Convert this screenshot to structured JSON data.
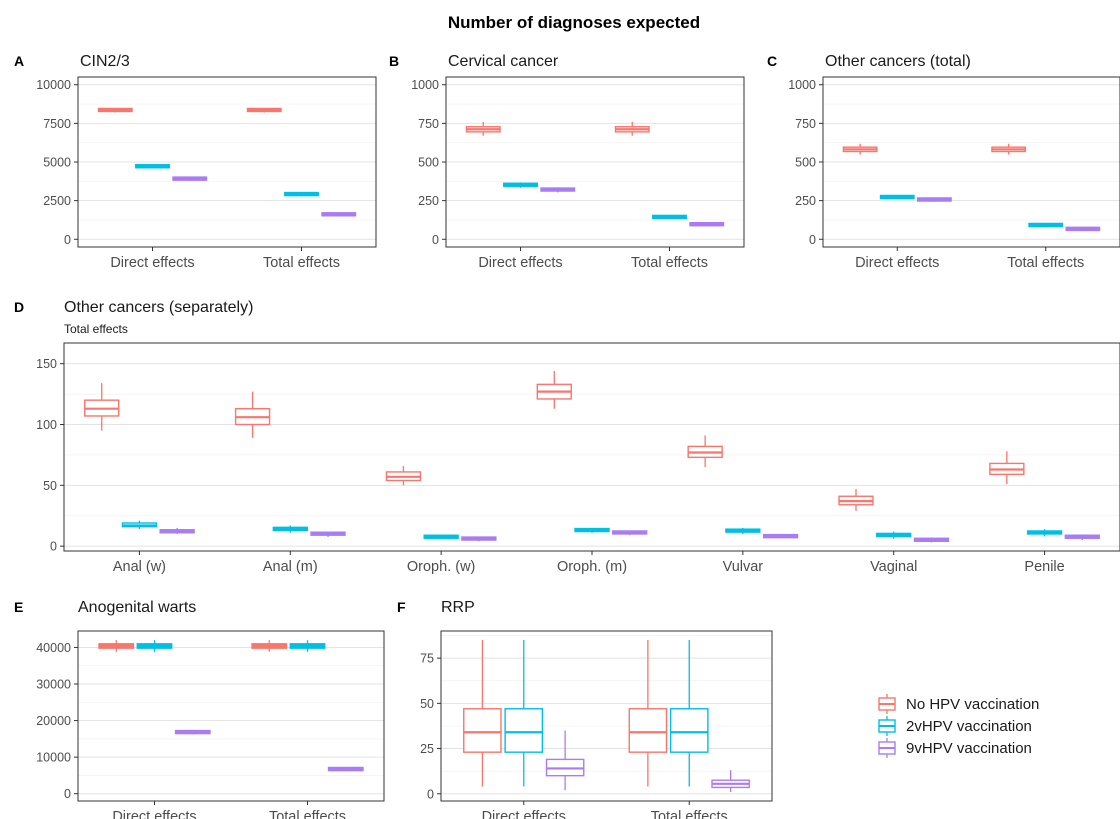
{
  "title": "Number of diagnoses expected",
  "legend": {
    "position": "right",
    "entries": [
      {
        "name": "No HPV vaccination",
        "color": "#F8766D"
      },
      {
        "name": "2vHPV vaccination",
        "color": "#00BFE4"
      },
      {
        "name": "9vHPV vaccination",
        "color": "#A97CF4"
      }
    ]
  },
  "chart_data": [
    {
      "panel": "A",
      "type": "boxplot",
      "title": "CIN2/3",
      "subtitle": "",
      "categories": [
        "Direct effects",
        "Total effects"
      ],
      "ylim": [
        -500,
        10500
      ],
      "yticks": [
        "0",
        "2500",
        "5000",
        "7500",
        "10000"
      ],
      "ytick_values": [
        0,
        2500,
        5000,
        7500,
        10000
      ],
      "grid": true,
      "series": [
        {
          "name": "No HPV vaccination",
          "boxes": [
            [
              8200,
              8270,
              8320,
              8370,
              8450
            ],
            [
              8200,
              8270,
              8320,
              8370,
              8450
            ]
          ]
        },
        {
          "name": "2vHPV vaccination",
          "boxes": [
            [
              4580,
              4630,
              4660,
              4690,
              4740
            ],
            [
              2780,
              2830,
              2860,
              2890,
              2940
            ]
          ]
        },
        {
          "name": "9vHPV vaccination",
          "boxes": [
            [
              3780,
              3830,
              3860,
              3890,
              3940
            ],
            [
              1470,
              1520,
              1550,
              1580,
              1630
            ]
          ]
        }
      ]
    },
    {
      "panel": "B",
      "type": "boxplot",
      "title": "Cervical cancer",
      "subtitle": "",
      "categories": [
        "Direct effects",
        "Total effects"
      ],
      "ylim": [
        -50,
        1050
      ],
      "yticks": [
        "0",
        "250",
        "500",
        "750",
        "1000"
      ],
      "ytick_values": [
        0,
        250,
        500,
        750,
        1000
      ],
      "grid": true,
      "series": [
        {
          "name": "No HPV vaccination",
          "boxes": [
            [
              670,
              695,
              712,
              728,
              760
            ],
            [
              670,
              695,
              712,
              728,
              760
            ]
          ]
        },
        {
          "name": "2vHPV vaccination",
          "boxes": [
            [
              333,
              343,
              350,
              357,
              368
            ],
            [
              130,
              135,
              138,
              141,
              146
            ]
          ]
        },
        {
          "name": "9vHPV vaccination",
          "boxes": [
            [
              303,
              312,
              318,
              325,
              335
            ],
            [
              84,
              88,
              91,
              94,
              98
            ]
          ]
        }
      ]
    },
    {
      "panel": "C",
      "type": "boxplot",
      "title": "Other cancers (total)",
      "subtitle": "",
      "categories": [
        "Direct effects",
        "Total effects"
      ],
      "ylim": [
        -50,
        1050
      ],
      "yticks": [
        "0",
        "250",
        "500",
        "750",
        "1000"
      ],
      "ytick_values": [
        0,
        250,
        500,
        750,
        1000
      ],
      "grid": true,
      "series": [
        {
          "name": "No HPV vaccination",
          "boxes": [
            [
              548,
              568,
              582,
              596,
              618
            ],
            [
              548,
              568,
              582,
              596,
              618
            ]
          ]
        },
        {
          "name": "2vHPV vaccination",
          "boxes": [
            [
              259,
              264,
              267,
              270,
              275
            ],
            [
              80,
              83,
              85,
              87,
              90
            ]
          ]
        },
        {
          "name": "9vHPV vaccination",
          "boxes": [
            [
              243,
              248,
              251,
              254,
              259
            ],
            [
              55,
              58,
              60,
              62,
              65
            ]
          ]
        }
      ]
    },
    {
      "panel": "D",
      "type": "boxplot",
      "title": "Other cancers (separately)",
      "subtitle": "Total effects",
      "categories": [
        "Anal (w)",
        "Anal (m)",
        "Oroph. (w)",
        "Oroph. (m)",
        "Vulvar",
        "Vaginal",
        "Penile"
      ],
      "ylim": [
        -4,
        167
      ],
      "yticks": [
        "0",
        "50",
        "100",
        "150"
      ],
      "ytick_values": [
        0,
        50,
        100,
        150
      ],
      "grid": true,
      "series": [
        {
          "name": "No HPV vaccination",
          "boxes": [
            [
              95,
              107,
              113,
              120,
              134
            ],
            [
              89,
              100,
              106,
              113,
              127
            ],
            [
              50,
              54,
              57,
              61,
              66
            ],
            [
              113,
              121,
              127,
              133,
              144
            ],
            [
              65,
              73,
              77,
              82,
              91
            ],
            [
              29,
              34,
              37,
              41,
              47
            ],
            [
              51,
              59,
              63,
              68,
              78
            ]
          ]
        },
        {
          "name": "2vHPV vaccination",
          "boxes": [
            [
              14,
              16,
              17,
              19,
              21
            ],
            [
              11,
              13,
              14,
              15,
              17
            ],
            [
              6,
              6.5,
              7,
              7.5,
              8
            ],
            [
              11,
              12,
              13,
              14,
              15
            ],
            [
              10,
              11.5,
              12.5,
              13.5,
              15
            ],
            [
              6,
              8,
              9,
              10,
              12
            ],
            [
              8,
              10,
              11,
              12,
              14
            ]
          ]
        },
        {
          "name": "9vHPV vaccination",
          "boxes": [
            [
              10,
              11,
              12,
              13,
              15
            ],
            [
              7.5,
              9,
              10,
              11,
              12
            ],
            [
              4,
              5,
              6,
              6.5,
              7
            ],
            [
              9,
              10,
              10.5,
              11,
              12
            ],
            [
              6.5,
              7,
              7.5,
              8,
              8.5
            ],
            [
              3,
              4,
              5,
              5.5,
              7
            ],
            [
              5,
              6.5,
              7,
              8,
              9.5
            ]
          ]
        }
      ]
    },
    {
      "panel": "E",
      "type": "boxplot",
      "title": "Anogenital warts",
      "subtitle": "",
      "categories": [
        "Direct effects",
        "Total effects"
      ],
      "ylim": [
        -2000,
        44500
      ],
      "yticks": [
        "0",
        "10000",
        "20000",
        "30000",
        "40000"
      ],
      "ytick_values": [
        0,
        10000,
        20000,
        30000,
        40000
      ],
      "grid": true,
      "series": [
        {
          "name": "No HPV vaccination",
          "boxes": [
            [
              38800,
              39800,
              40400,
              41000,
              42000
            ],
            [
              38800,
              39800,
              40400,
              41000,
              42000
            ]
          ]
        },
        {
          "name": "2vHPV vaccination",
          "boxes": [
            [
              38800,
              39800,
              40400,
              41000,
              42000
            ],
            [
              38800,
              39800,
              40400,
              41000,
              42000
            ]
          ]
        },
        {
          "name": "9vHPV vaccination",
          "boxes": [
            [
              16200,
              16450,
              16600,
              16750,
              17000
            ],
            [
              6200,
              6350,
              6450,
              6550,
              6700
            ]
          ]
        }
      ]
    },
    {
      "panel": "F",
      "type": "boxplot",
      "title": "RRP",
      "subtitle": "",
      "categories": [
        "Direct effects",
        "Total effects"
      ],
      "ylim": [
        -4,
        90
      ],
      "yticks": [
        "0",
        "25",
        "50",
        "75"
      ],
      "ytick_values": [
        0,
        25,
        50,
        75
      ],
      "grid": true,
      "series": [
        {
          "name": "No HPV vaccination",
          "boxes": [
            [
              4,
              23,
              34,
              47,
              85
            ],
            [
              4,
              23,
              34,
              47,
              85
            ]
          ]
        },
        {
          "name": "2vHPV vaccination",
          "boxes": [
            [
              4,
              23,
              34,
              47,
              85
            ],
            [
              4,
              23,
              34,
              47,
              85
            ]
          ]
        },
        {
          "name": "9vHPV vaccination",
          "boxes": [
            [
              2,
              10,
              14,
              19,
              35
            ],
            [
              1,
              3.5,
              5.5,
              7.5,
              13
            ]
          ]
        }
      ]
    }
  ]
}
